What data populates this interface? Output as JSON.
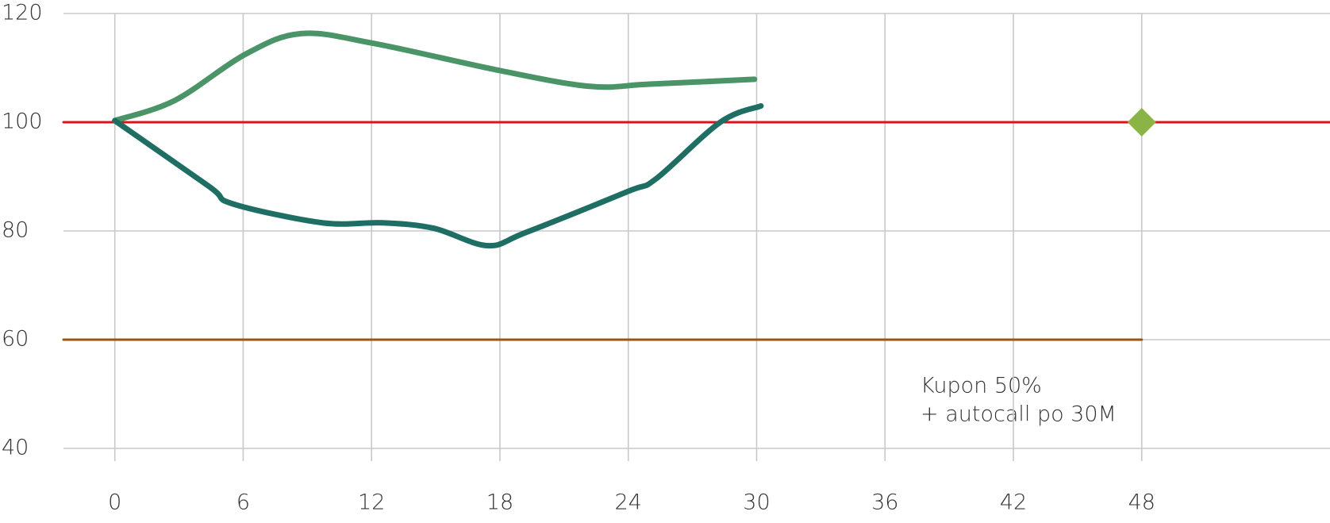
{
  "chart_data": {
    "type": "line",
    "annotations": [
      "Kupon 50%",
      "+ autocall po 30M"
    ],
    "xlim": [
      -2.4,
      56.8
    ],
    "xticks": [
      0,
      6,
      12,
      18,
      24,
      30,
      36,
      42,
      48
    ],
    "ylim": [
      40,
      120
    ],
    "yticks": [
      40,
      60,
      80,
      100,
      120
    ],
    "grid": true,
    "series": [
      {
        "color": "#4a9467",
        "x": [
          0,
          2.8,
          6.1,
          8.7,
          12.1,
          18,
          22.2,
          25,
          29.9
        ],
        "values": [
          100.3,
          104,
          112.5,
          116.3,
          114.5,
          109.5,
          106.6,
          107,
          107.9
        ]
      },
      {
        "color": "#1f6e64",
        "x": [
          0,
          4.4,
          5.5,
          9.7,
          12.5,
          14.9,
          17.4,
          19.2,
          24,
          25.3,
          28.3,
          30.2
        ],
        "values": [
          100.3,
          88.2,
          85,
          81.5,
          81.5,
          80.5,
          77.3,
          79.7,
          87.3,
          89.6,
          100,
          103
        ]
      },
      {
        "color": "#d9141b",
        "x": [
          -2.4,
          56.8
        ],
        "values": [
          100,
          100
        ]
      },
      {
        "color": "#9a5512",
        "x": [
          -2.4,
          48
        ],
        "values": [
          60,
          60
        ]
      }
    ],
    "points": {
      "color": "#8ab446",
      "x": [
        48
      ],
      "values": [
        100
      ]
    }
  }
}
